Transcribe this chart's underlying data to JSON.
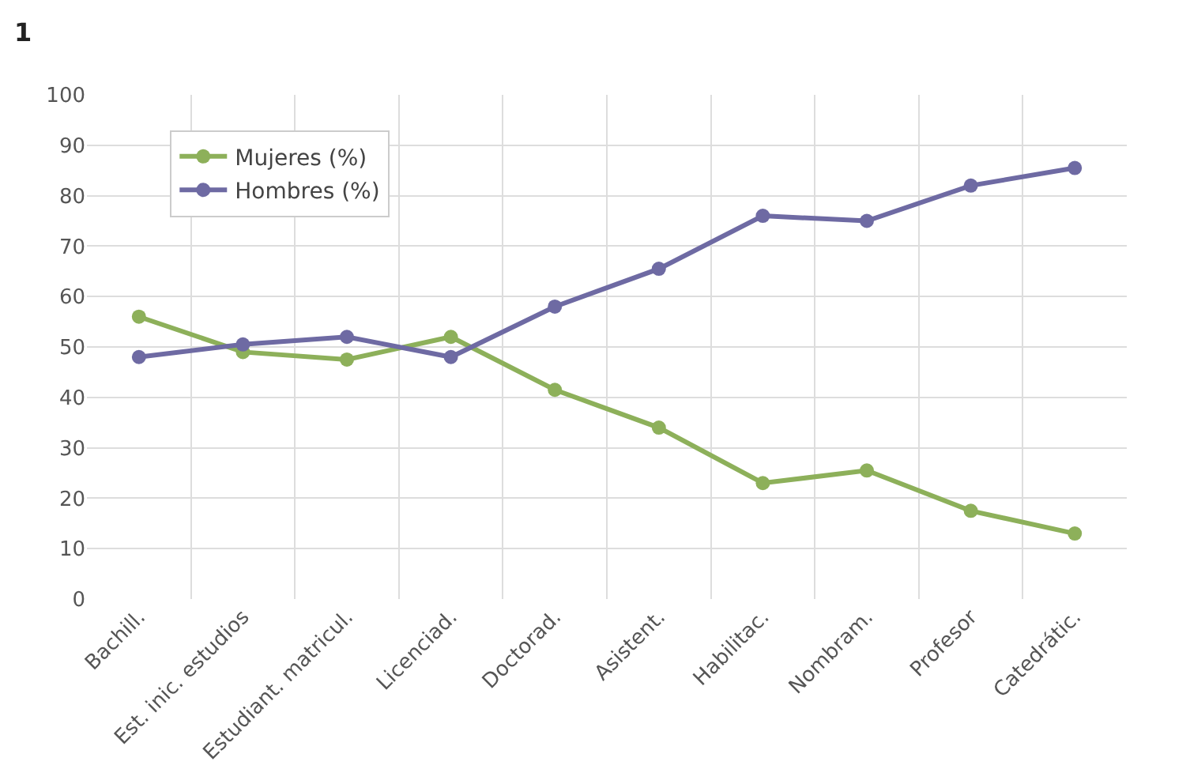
{
  "chart_data": {
    "type": "line",
    "title": "1",
    "categories": [
      "Bachill.",
      "Est. inic. estudios",
      "Estudiant. matricul.",
      "Licenciad.",
      "Doctorad.",
      "Asistent.",
      "Habilitac.",
      "Nombram.",
      "Profesor",
      "Catedrátic."
    ],
    "series": [
      {
        "name": "Mujeres (%)",
        "color": "#8db05a",
        "values": [
          56,
          49,
          47.5,
          52,
          41.5,
          34,
          23,
          25.5,
          17.5,
          13
        ]
      },
      {
        "name": "Hombres (%)",
        "color": "#6e6aa3",
        "values": [
          48,
          50.5,
          52,
          48,
          58,
          65.5,
          76,
          75,
          82,
          85.5
        ]
      }
    ],
    "ylim": [
      0,
      100
    ],
    "yticks": [
      0,
      10,
      20,
      30,
      40,
      50,
      60,
      70,
      80,
      90,
      100
    ],
    "grid": true,
    "legend": "top left",
    "marker": "circle",
    "line_style": "solid"
  }
}
